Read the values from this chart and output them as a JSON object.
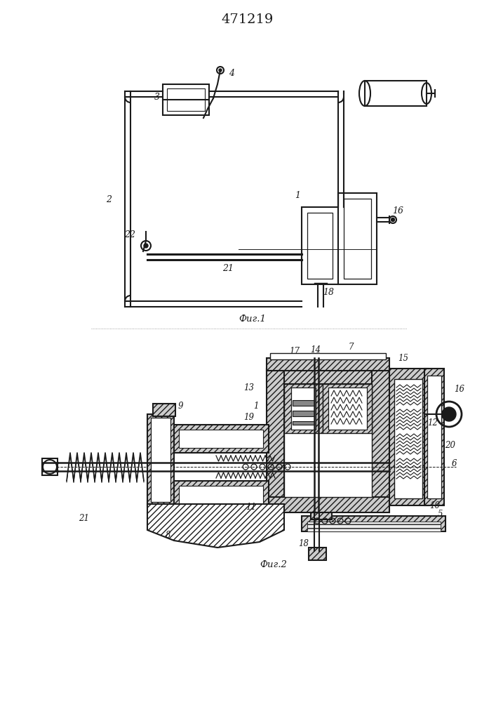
{
  "title": "471219",
  "fig1_label": "Фиг.1",
  "fig2_label": "Фиг.2",
  "bg": "#ffffff",
  "lc": "#1a1a1a",
  "lw": 1.1
}
